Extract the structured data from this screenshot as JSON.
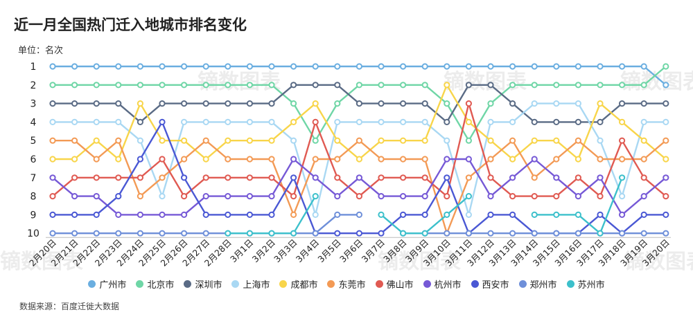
{
  "title": "近一月全国热门迁入地城市排名变化",
  "unit_label": "单位：名次",
  "source": "数据来源：百度迁徙大数据",
  "watermark": "镝数图表",
  "chart_data": {
    "type": "line",
    "title": "近一月全国热门迁入地城市排名变化",
    "ylabel": "名次",
    "y_inverted": true,
    "ylim": [
      1,
      10
    ],
    "y_ticks": [
      "1",
      "2",
      "3",
      "4",
      "5",
      "6",
      "7",
      "8",
      "9",
      "10"
    ],
    "x": [
      "2月20日",
      "2月21日",
      "2月22日",
      "2月23日",
      "2月24日",
      "2月25日",
      "2月26日",
      "2月27日",
      "2月28日",
      "3月1日",
      "3月2日",
      "3月3日",
      "3月4日",
      "3月5日",
      "3月6日",
      "3月7日",
      "3月8日",
      "3月9日",
      "3月10日",
      "3月11日",
      "3月12日",
      "3月13日",
      "3月14日",
      "3月15日",
      "3月16日",
      "3月17日",
      "3月18日",
      "3月19日",
      "3月20日"
    ],
    "legend_position": "bottom",
    "series": [
      {
        "name": "广州市",
        "color": "#6aaee0",
        "values": [
          1,
          1,
          1,
          1,
          1,
          1,
          1,
          1,
          1,
          1,
          1,
          1,
          1,
          1,
          1,
          1,
          1,
          1,
          1,
          1,
          1,
          1,
          1,
          1,
          1,
          1,
          1,
          1,
          2
        ]
      },
      {
        "name": "北京市",
        "color": "#6fd6a6",
        "values": [
          2,
          2,
          2,
          2,
          2,
          2,
          2,
          2,
          2,
          2,
          2,
          3,
          5,
          3,
          2,
          2,
          2,
          2,
          3,
          5,
          3,
          2,
          2,
          2,
          2,
          2,
          2,
          2,
          1
        ]
      },
      {
        "name": "深圳市",
        "color": "#5a6b85",
        "values": [
          3,
          3,
          3,
          3,
          4,
          3,
          3,
          3,
          3,
          3,
          3,
          2,
          2,
          2,
          3,
          3,
          3,
          3,
          4,
          2,
          2,
          3,
          4,
          4,
          4,
          4,
          3,
          3,
          3
        ]
      },
      {
        "name": "上海市",
        "color": "#a9d8f3",
        "values": [
          4,
          4,
          4,
          4,
          5,
          8,
          4,
          4,
          4,
          4,
          4,
          5,
          9,
          4,
          4,
          4,
          4,
          4,
          5,
          9,
          4,
          4,
          3,
          3,
          3,
          5,
          8,
          4,
          4
        ]
      },
      {
        "name": "成都市",
        "color": "#f8d54a",
        "values": [
          6,
          6,
          5,
          6,
          3,
          5,
          5,
          6,
          5,
          5,
          5,
          4,
          3,
          5,
          6,
          5,
          5,
          5,
          2,
          4,
          5,
          6,
          5,
          5,
          6,
          3,
          4,
          5,
          6
        ]
      },
      {
        "name": "东莞市",
        "color": "#f39a55",
        "values": [
          5,
          5,
          6,
          5,
          8,
          7,
          6,
          5,
          6,
          6,
          6,
          9,
          6,
          6,
          5,
          6,
          6,
          6,
          10,
          7,
          6,
          5,
          7,
          6,
          5,
          6,
          6,
          6,
          5
        ]
      },
      {
        "name": "佛山市",
        "color": "#e05a52",
        "values": [
          8,
          7,
          7,
          7,
          7,
          6,
          8,
          7,
          7,
          7,
          7,
          8,
          4,
          7,
          8,
          7,
          7,
          7,
          8,
          3,
          7,
          8,
          8,
          8,
          7,
          8,
          5,
          7,
          8
        ]
      },
      {
        "name": "杭州市",
        "color": "#7659d6",
        "values": [
          7,
          8,
          8,
          9,
          9,
          9,
          9,
          8,
          8,
          8,
          8,
          6,
          7,
          8,
          7,
          8,
          8,
          8,
          6,
          6,
          8,
          7,
          6,
          7,
          8,
          7,
          9,
          8,
          7
        ]
      },
      {
        "name": "西安市",
        "color": "#4a58d4",
        "values": [
          9,
          9,
          9,
          8,
          6,
          4,
          7,
          9,
          9,
          9,
          9,
          7,
          10,
          10,
          10,
          10,
          9,
          9,
          7,
          10,
          9,
          9,
          10,
          10,
          10,
          9,
          10,
          9,
          9
        ]
      },
      {
        "name": "郑州市",
        "color": "#6e8fd9",
        "values": [
          10,
          10,
          10,
          10,
          10,
          10,
          10,
          10,
          10,
          10,
          10,
          10,
          10,
          9,
          9,
          null,
          10,
          10,
          10,
          10,
          10,
          10,
          10,
          10,
          10,
          10,
          10,
          10,
          10
        ]
      },
      {
        "name": "苏州市",
        "color": "#3cc0cb",
        "values": [
          null,
          null,
          null,
          null,
          null,
          null,
          null,
          null,
          10,
          10,
          10,
          10,
          8,
          null,
          null,
          9,
          10,
          10,
          9,
          8,
          null,
          null,
          9,
          9,
          9,
          10,
          7,
          null,
          null
        ]
      }
    ]
  }
}
